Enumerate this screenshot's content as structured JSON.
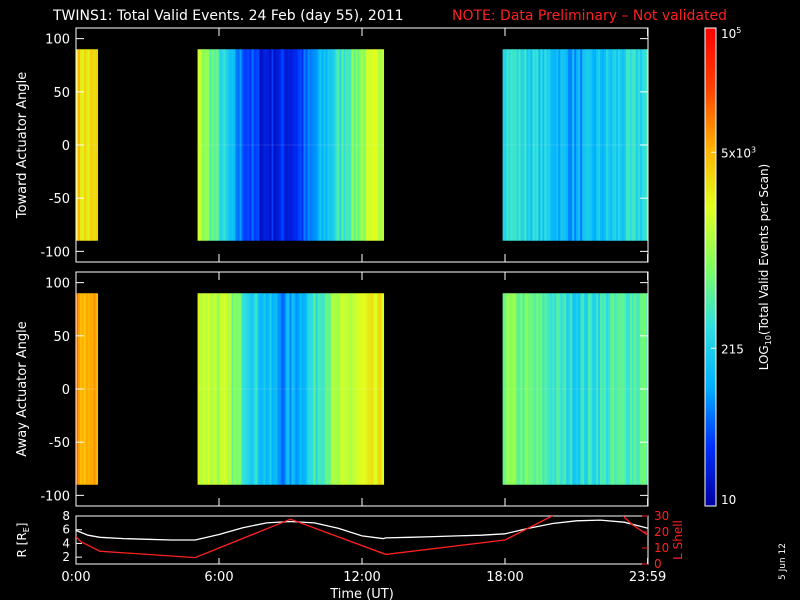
{
  "title": {
    "main": "TWINS1: Total Valid Events. 24 Feb (day  55), 2011",
    "note": "NOTE: Data Preliminary – Not validated"
  },
  "colors": {
    "background": "#000000",
    "axis": "#ffffff",
    "note": "#ff2020",
    "red_curve": "#ff2020",
    "white_curve": "#ffffff",
    "colorbar": [
      "#0000a0",
      "#0030ff",
      "#00b0ff",
      "#30e0e0",
      "#80ff60",
      "#e0ff20",
      "#ffb000",
      "#ff4000",
      "#ff0000"
    ]
  },
  "footer": {
    "date_stamp": "5 Jun 12"
  },
  "chart_data": [
    {
      "type": "heatmap",
      "name": "toward",
      "ylabel": "Toward Actuator Angle",
      "ylim": [
        -110,
        110
      ],
      "yticks": [
        100,
        50,
        0,
        -50,
        -100
      ],
      "ytick_labels": [
        "100",
        "50",
        "0",
        "-50",
        "-100"
      ],
      "xlim": [
        0,
        24
      ],
      "y_extent": [
        -90,
        90
      ],
      "blocks": [
        {
          "t_start": 0.0,
          "t_end": 0.9,
          "stops": [
            [
              0,
              0.7
            ],
            [
              0.5,
              0.66
            ],
            [
              1,
              0.68
            ]
          ]
        },
        {
          "t_start": 5.1,
          "t_end": 12.9,
          "stops": [
            [
              0,
              0.58
            ],
            [
              0.08,
              0.45
            ],
            [
              0.2,
              0.22
            ],
            [
              0.35,
              0.08
            ],
            [
              0.5,
              0.1
            ],
            [
              0.6,
              0.18
            ],
            [
              0.75,
              0.38
            ],
            [
              0.9,
              0.55
            ],
            [
              1,
              0.62
            ]
          ]
        },
        {
          "t_start": 17.9,
          "t_end": 23.99,
          "stops": [
            [
              0,
              0.4
            ],
            [
              0.3,
              0.32
            ],
            [
              0.5,
              0.24
            ],
            [
              0.7,
              0.3
            ],
            [
              1,
              0.38
            ]
          ]
        }
      ]
    },
    {
      "type": "heatmap",
      "name": "away",
      "ylabel": "Away Actuator Angle",
      "ylim": [
        -110,
        110
      ],
      "yticks": [
        100,
        50,
        0,
        -50,
        -100
      ],
      "ytick_labels": [
        "100",
        "50",
        "0",
        "-50",
        "-100"
      ],
      "xlim": [
        0,
        24
      ],
      "y_extent": [
        -90,
        90
      ],
      "blocks": [
        {
          "t_start": 0.0,
          "t_end": 0.9,
          "stops": [
            [
              0,
              0.78
            ],
            [
              0.5,
              0.74
            ],
            [
              1,
              0.76
            ]
          ]
        },
        {
          "t_start": 5.1,
          "t_end": 12.9,
          "stops": [
            [
              0,
              0.62
            ],
            [
              0.15,
              0.55
            ],
            [
              0.3,
              0.35
            ],
            [
              0.45,
              0.22
            ],
            [
              0.55,
              0.28
            ],
            [
              0.7,
              0.5
            ],
            [
              0.85,
              0.6
            ],
            [
              1,
              0.64
            ]
          ]
        },
        {
          "t_start": 17.9,
          "t_end": 23.99,
          "stops": [
            [
              0,
              0.5
            ],
            [
              0.3,
              0.42
            ],
            [
              0.5,
              0.35
            ],
            [
              0.7,
              0.4
            ],
            [
              1,
              0.46
            ]
          ]
        }
      ]
    },
    {
      "type": "line",
      "name": "orbit",
      "ylabel": "R [R",
      "ylabel_sub": "E",
      "ylabel_close": "]",
      "ylim": [
        1,
        8
      ],
      "yticks": [
        8,
        6,
        4,
        2
      ],
      "ytick_labels": [
        "8",
        "6",
        "4",
        "2"
      ],
      "y2label": "L Shell",
      "y2lim": [
        0,
        30
      ],
      "y2ticks": [
        30,
        20,
        10,
        0
      ],
      "y2tick_labels": [
        "30",
        "20",
        "10",
        "0"
      ],
      "xlim": [
        0,
        24
      ],
      "xlabel": "Time (UT)",
      "xticks": [
        0,
        6,
        12,
        18,
        23.983
      ],
      "xtick_labels": [
        "0:00",
        "6:00",
        "12:00",
        "18:00",
        "23:59"
      ],
      "series": [
        {
          "axis": "left",
          "color": "#ffffff",
          "x": [
            0,
            0.5,
            1,
            2,
            3,
            4,
            5,
            6,
            7,
            8,
            9,
            10,
            11,
            12,
            12.9,
            13,
            14,
            15,
            16,
            17,
            18,
            19,
            20,
            21,
            22,
            23,
            24
          ],
          "y": [
            5.9,
            5.2,
            4.9,
            4.7,
            4.6,
            4.5,
            4.5,
            5.3,
            6.3,
            7.0,
            7.2,
            7.0,
            6.2,
            5.1,
            4.7,
            4.8,
            4.9,
            5.0,
            5.1,
            5.2,
            5.4,
            6.2,
            6.9,
            7.3,
            7.4,
            7.1,
            6.2
          ]
        },
        {
          "axis": "right",
          "color": "#ff2020",
          "x": [
            0,
            0.2,
            1,
            5,
            9,
            13,
            18,
            20.5,
            21,
            22,
            22.7,
            23.3,
            24
          ],
          "y": [
            17,
            14,
            8,
            4,
            28,
            6,
            15,
            34,
            null,
            null,
            34,
            25,
            18
          ]
        }
      ]
    }
  ],
  "colorbar": {
    "label": "LOG",
    "label_sub": "10",
    "label_rest": "(Total Valid  Events per Scan)",
    "ticks": [
      {
        "frac": 1.0,
        "label": "10",
        "sup": "5"
      },
      {
        "frac": 0.74,
        "label": "5x10",
        "sup": "3"
      },
      {
        "frac": 0.33,
        "label": "215",
        "sup": ""
      },
      {
        "frac": 0.0,
        "label": "10",
        "sup": ""
      }
    ]
  }
}
